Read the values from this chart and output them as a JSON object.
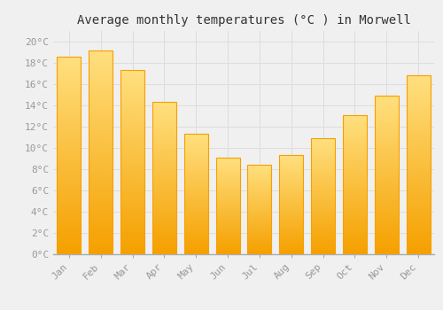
{
  "title": "Average monthly temperatures (°C ) in Morwell",
  "months": [
    "Jan",
    "Feb",
    "Mar",
    "Apr",
    "May",
    "Jun",
    "Jul",
    "Aug",
    "Sep",
    "Oct",
    "Nov",
    "Dec"
  ],
  "values": [
    18.6,
    19.2,
    17.3,
    14.3,
    11.3,
    9.1,
    8.4,
    9.3,
    10.9,
    13.1,
    14.9,
    16.8
  ],
  "bar_color_center": "#FFD060",
  "bar_color_edge": "#F5A000",
  "background_color": "#F0F0F0",
  "grid_color": "#DDDDDD",
  "ylim": [
    0,
    21
  ],
  "yticks": [
    0,
    2,
    4,
    6,
    8,
    10,
    12,
    14,
    16,
    18,
    20
  ],
  "title_fontsize": 10,
  "tick_fontsize": 8,
  "tick_color": "#999999",
  "title_color": "#333333"
}
